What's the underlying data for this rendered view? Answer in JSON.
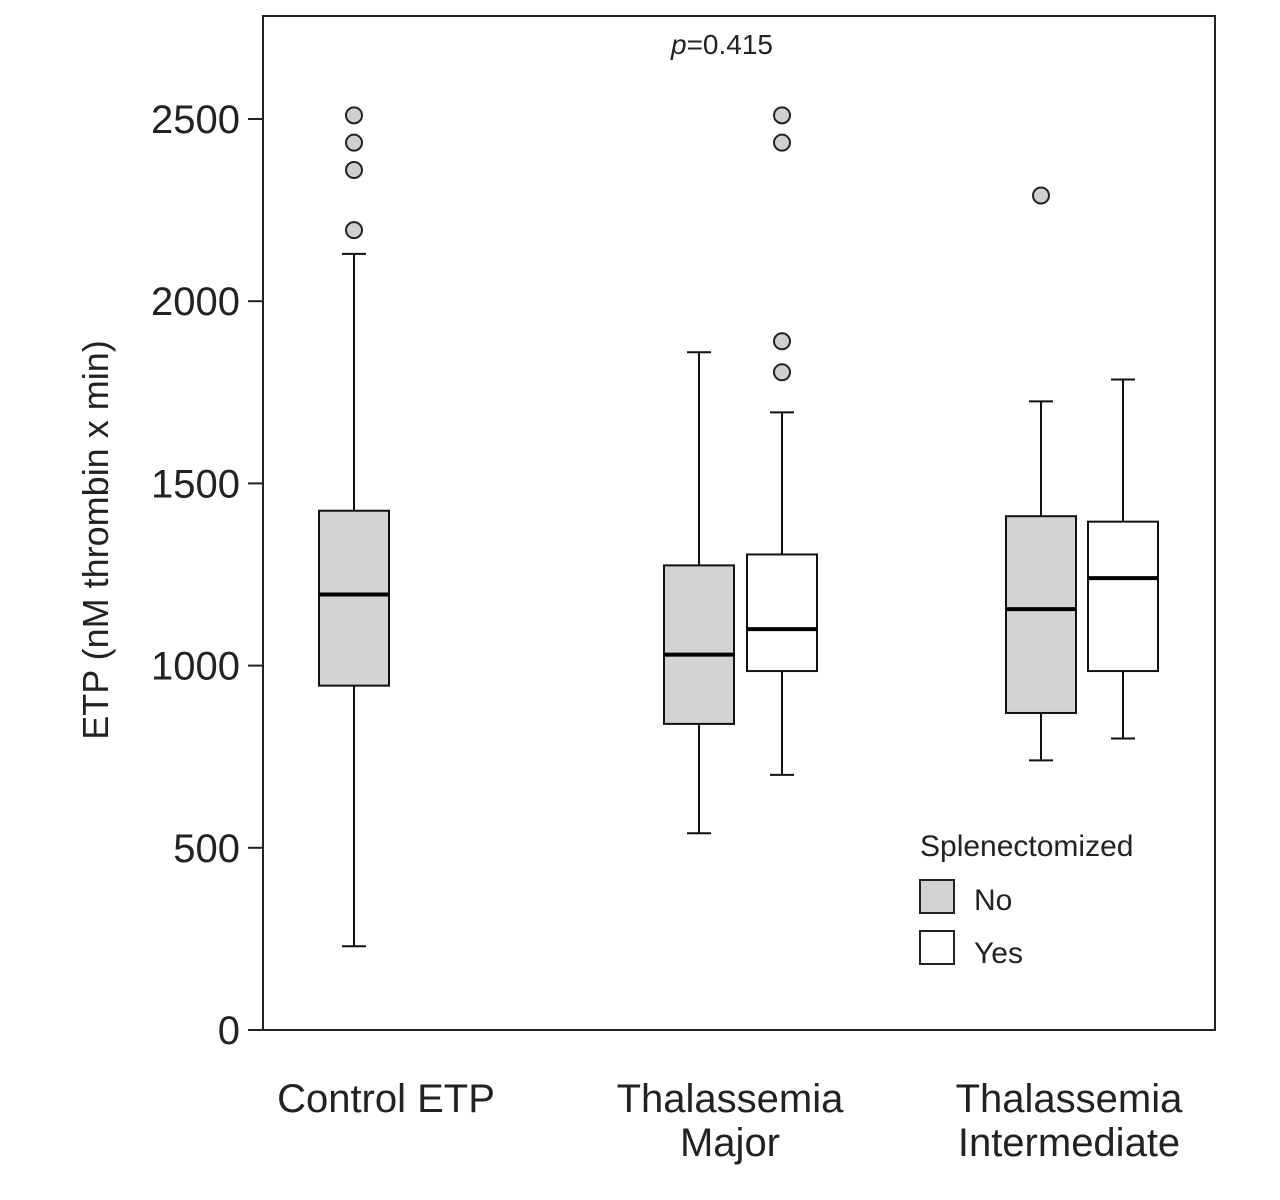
{
  "chart_data": {
    "type": "boxplot",
    "title": "",
    "annotation": {
      "p_label": "p",
      "p_value": "=0.415"
    },
    "ylabel": "ETP (nM thrombin x min)",
    "xlabel": "",
    "ylim": [
      0,
      2750
    ],
    "yticks": [
      "0",
      "500",
      "1000",
      "1500",
      "2000",
      "2500"
    ],
    "yticks_values": [
      0,
      500,
      1000,
      1500,
      2000,
      2500
    ],
    "categories": [
      {
        "label": "Control ETP",
        "lines": [
          "Control ETP"
        ]
      },
      {
        "label": "Thalassemia Major",
        "lines": [
          "Thalassemia",
          "Major"
        ]
      },
      {
        "label": "Thalassemia Intermediate",
        "lines": [
          "Thalassemia",
          "Intermediate"
        ]
      }
    ],
    "legend": {
      "title": "Splenectomized",
      "position": "bottom-right",
      "entries": [
        {
          "label": "No",
          "color": "#d3d3d3"
        },
        {
          "label": "Yes",
          "color": "#ffffff"
        }
      ]
    },
    "boxes": [
      {
        "category": "Control ETP",
        "group": "No",
        "color": "#d3d3d3",
        "whisker_low": 230,
        "q1": 945,
        "median": 1195,
        "q3": 1425,
        "whisker_high": 2130,
        "outliers": [
          2195,
          2360,
          2435,
          2510
        ]
      },
      {
        "category": "Thalassemia Major",
        "group": "No",
        "color": "#d3d3d3",
        "whisker_low": 540,
        "q1": 840,
        "median": 1030,
        "q3": 1275,
        "whisker_high": 1860,
        "outliers": []
      },
      {
        "category": "Thalassemia Major",
        "group": "Yes",
        "color": "#ffffff",
        "whisker_low": 700,
        "q1": 985,
        "median": 1100,
        "q3": 1305,
        "whisker_high": 1695,
        "outliers": [
          1805,
          1890,
          2435,
          2510
        ]
      },
      {
        "category": "Thalassemia Intermediate",
        "group": "No",
        "color": "#d3d3d3",
        "whisker_low": 740,
        "q1": 870,
        "median": 1155,
        "q3": 1410,
        "whisker_high": 1725,
        "outliers": [
          2290
        ]
      },
      {
        "category": "Thalassemia Intermediate",
        "group": "Yes",
        "color": "#ffffff",
        "whisker_low": 800,
        "q1": 985,
        "median": 1240,
        "q3": 1395,
        "whisker_high": 1785,
        "outliers": []
      }
    ]
  }
}
